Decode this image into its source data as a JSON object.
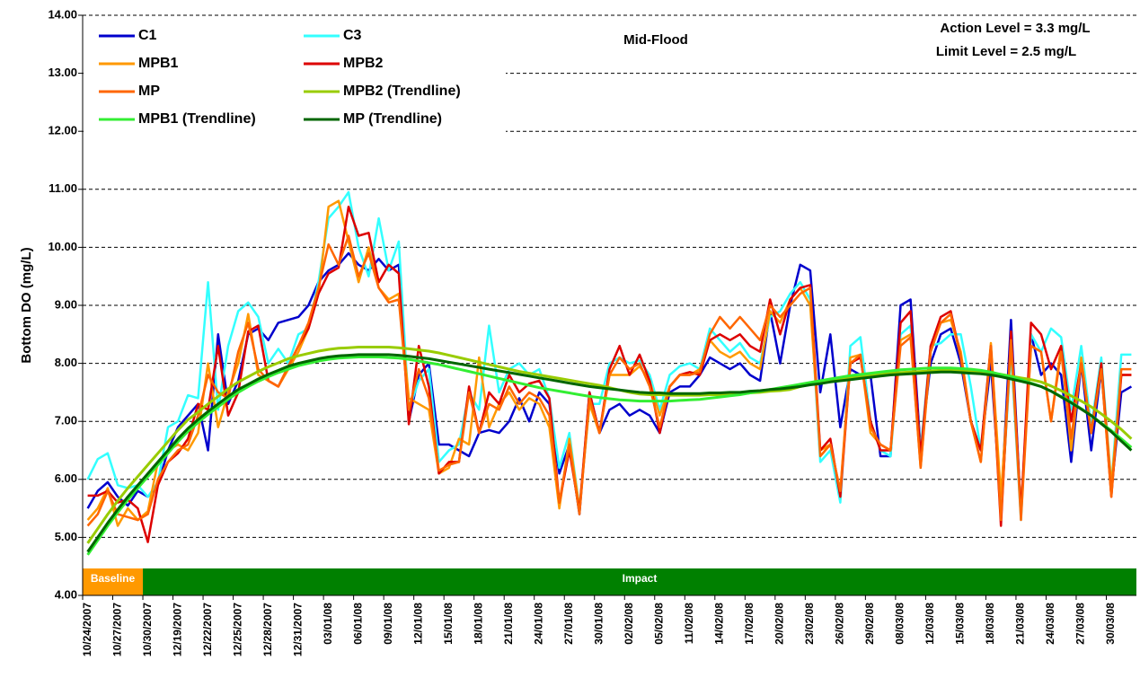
{
  "chart_data": {
    "type": "line",
    "y_label": "Bottom DO (mg/L)",
    "annotations": [
      "Mid-Flood",
      "Action Level = 3.3 mg/L",
      "Limit Level = 2.5 mg/L"
    ],
    "categories": [
      "10/24/2007",
      null,
      null,
      "10/27/2007",
      null,
      null,
      "10/30/2007",
      null,
      null,
      "12/19/2007",
      null,
      null,
      "12/22/2007",
      null,
      null,
      "12/25/2007",
      null,
      null,
      "12/28/2007",
      null,
      null,
      "12/31/2007",
      null,
      null,
      "03/01/08",
      null,
      null,
      "06/01/08",
      null,
      null,
      "09/01/08",
      null,
      null,
      "12/01/08",
      null,
      null,
      "15/01/08",
      null,
      null,
      "18/01/08",
      null,
      null,
      "21/01/08",
      null,
      null,
      "24/01/08",
      null,
      null,
      "27/01/08",
      null,
      null,
      "30/01/08",
      null,
      null,
      "02/02/08",
      null,
      null,
      "05/02/08",
      null,
      null,
      "11/02/08",
      null,
      null,
      "14/02/08",
      null,
      null,
      "17/02/08",
      null,
      null,
      "20/02/08",
      null,
      null,
      "23/02/08",
      null,
      null,
      "26/02/08",
      null,
      null,
      "29/02/08",
      null,
      null,
      "08/03/08",
      null,
      null,
      "12/03/08",
      null,
      null,
      "15/03/08",
      null,
      null,
      "18/03/08",
      null,
      null,
      "21/03/08",
      null,
      null,
      "24/03/08",
      null,
      null,
      "27/03/08",
      null,
      null,
      "30/03/08",
      null,
      null
    ],
    "periods": [
      {
        "label": "Baseline",
        "first_category": 0,
        "last_category": 5,
        "color": "#ff9900"
      },
      {
        "label": "Impact",
        "first_category": 6,
        "last_category": 104,
        "color": "#008000"
      }
    ],
    "ylim": [
      4,
      14
    ],
    "yticks": [
      {
        "value": 4,
        "label": "4.00"
      },
      {
        "value": 5,
        "label": "5.00"
      },
      {
        "value": 6,
        "label": "6.00"
      },
      {
        "value": 7,
        "label": "7.00"
      },
      {
        "value": 8,
        "label": "8.00"
      },
      {
        "value": 9,
        "label": "9.00"
      },
      {
        "value": 10,
        "label": "10.00"
      },
      {
        "value": 11,
        "label": "11.00"
      },
      {
        "value": 12,
        "label": "12.00"
      },
      {
        "value": 13,
        "label": "13.00"
      },
      {
        "value": 14,
        "label": "14.00"
      }
    ],
    "grid": true,
    "series": [
      {
        "name": "C1",
        "color": "#0000cc",
        "values": [
          5.5,
          5.8,
          5.95,
          5.7,
          5.55,
          5.8,
          5.7,
          5.9,
          6.5,
          6.9,
          7.1,
          7.3,
          6.5,
          8.5,
          7.3,
          7.7,
          8.5,
          8.6,
          8.4,
          8.7,
          8.75,
          8.8,
          9.0,
          9.4,
          9.6,
          9.7,
          9.9,
          9.7,
          9.6,
          9.8,
          9.6,
          9.7,
          7.0,
          7.8,
          8.0,
          6.6,
          6.6,
          6.5,
          6.4,
          6.8,
          6.85,
          6.8,
          7.0,
          7.4,
          7.0,
          7.5,
          7.3,
          6.1,
          6.6,
          5.4,
          7.5,
          6.8,
          7.2,
          7.3,
          7.1,
          7.2,
          7.1,
          6.8,
          7.5,
          7.6,
          7.6,
          7.8,
          8.1,
          8.0,
          7.9,
          8.0,
          7.8,
          7.7,
          8.9,
          8.0,
          9.0,
          9.7,
          9.6,
          7.5,
          8.5,
          6.9,
          7.9,
          7.8,
          7.8,
          6.4,
          6.4,
          9.0,
          9.1,
          6.5,
          8.0,
          8.5,
          8.6,
          8.0,
          7.0,
          6.5,
          8.0,
          5.5,
          8.75,
          5.4,
          8.5,
          7.8,
          8.0,
          7.8,
          6.3,
          8.0,
          6.5,
          7.9,
          5.8,
          7.5,
          7.6
        ]
      },
      {
        "name": "C3",
        "color": "#33ffff",
        "values": [
          6.0,
          6.35,
          6.45,
          5.9,
          5.85,
          5.9,
          5.7,
          5.95,
          6.9,
          7.0,
          7.45,
          7.4,
          9.4,
          7.2,
          8.3,
          8.9,
          9.05,
          8.8,
          8.0,
          8.25,
          8.0,
          8.5,
          8.6,
          9.4,
          10.5,
          10.7,
          10.95,
          10.0,
          9.5,
          10.5,
          9.6,
          10.1,
          7.2,
          7.7,
          7.9,
          6.3,
          6.5,
          6.6,
          7.5,
          7.2,
          8.65,
          7.5,
          7.9,
          8.0,
          7.8,
          7.9,
          7.4,
          6.2,
          6.8,
          5.5,
          7.3,
          7.3,
          8.0,
          8.1,
          8.0,
          8.05,
          7.8,
          7.2,
          7.8,
          7.95,
          8.0,
          7.9,
          8.6,
          8.4,
          8.2,
          8.35,
          8.1,
          8.0,
          8.8,
          8.9,
          9.2,
          9.4,
          9.1,
          6.3,
          6.5,
          5.6,
          8.3,
          8.45,
          7.0,
          6.5,
          6.4,
          8.5,
          8.65,
          6.5,
          8.3,
          8.35,
          8.5,
          8.5,
          7.6,
          6.5,
          8.3,
          5.4,
          8.2,
          5.3,
          8.5,
          8.2,
          8.6,
          8.45,
          7.2,
          8.3,
          6.9,
          8.1,
          5.9,
          8.15,
          8.15
        ]
      },
      {
        "name": "MPB1",
        "color": "#ff9900",
        "values": [
          5.3,
          5.5,
          5.85,
          5.2,
          5.5,
          5.3,
          5.45,
          6.3,
          6.5,
          6.6,
          6.5,
          6.8,
          8.0,
          6.9,
          7.5,
          8.0,
          8.85,
          7.8,
          7.7,
          7.6,
          7.9,
          8.2,
          8.6,
          9.2,
          10.7,
          10.8,
          10.1,
          9.4,
          10.0,
          9.3,
          9.1,
          9.2,
          7.4,
          7.3,
          7.2,
          6.1,
          6.2,
          6.7,
          6.6,
          8.1,
          6.9,
          7.3,
          7.5,
          7.2,
          7.4,
          7.3,
          6.9,
          5.5,
          6.7,
          5.5,
          7.3,
          6.8,
          7.8,
          7.8,
          7.8,
          7.95,
          7.7,
          7.1,
          7.6,
          7.8,
          7.8,
          7.9,
          8.4,
          8.2,
          8.1,
          8.2,
          8.0,
          7.9,
          8.9,
          8.7,
          9.1,
          9.3,
          9.0,
          6.5,
          6.6,
          5.8,
          8.1,
          8.15,
          6.8,
          6.6,
          6.5,
          8.4,
          8.5,
          6.2,
          8.3,
          8.7,
          8.75,
          8.2,
          7.0,
          6.3,
          8.35,
          5.7,
          8.3,
          5.5,
          8.3,
          8.2,
          7.0,
          8.3,
          6.5,
          8.1,
          6.8,
          8.0,
          5.9,
          7.8,
          7.8
        ]
      },
      {
        "name": "MPB2",
        "color": "#dd0000",
        "values": [
          5.72,
          5.72,
          5.8,
          5.6,
          5.65,
          5.5,
          4.92,
          5.9,
          6.3,
          6.45,
          6.7,
          7.3,
          7.2,
          8.3,
          7.1,
          7.5,
          8.55,
          8.65,
          7.7,
          7.6,
          7.95,
          8.3,
          8.6,
          9.2,
          9.55,
          9.65,
          10.7,
          10.2,
          10.25,
          9.4,
          9.7,
          9.55,
          6.95,
          8.3,
          7.6,
          6.1,
          6.3,
          6.3,
          7.6,
          6.8,
          7.5,
          7.3,
          7.8,
          7.5,
          7.65,
          7.7,
          7.4,
          5.6,
          6.5,
          5.45,
          7.5,
          6.8,
          7.9,
          8.3,
          7.8,
          8.15,
          7.7,
          6.8,
          7.6,
          7.8,
          7.85,
          7.8,
          8.4,
          8.5,
          8.4,
          8.5,
          8.3,
          8.2,
          9.1,
          8.5,
          9.1,
          9.3,
          9.35,
          6.5,
          6.7,
          5.7,
          8.0,
          8.1,
          7.0,
          6.5,
          6.5,
          8.7,
          8.9,
          6.4,
          8.3,
          8.8,
          8.9,
          8.1,
          7.0,
          6.5,
          8.3,
          5.2,
          8.55,
          5.4,
          8.7,
          8.5,
          7.9,
          8.3,
          7.0,
          8.0,
          6.8,
          8.0,
          5.7,
          7.8,
          7.8
        ]
      },
      {
        "name": "MP",
        "color": "#ff6600",
        "values": [
          5.2,
          5.4,
          5.8,
          5.4,
          5.35,
          5.3,
          5.4,
          6.0,
          6.3,
          6.5,
          6.6,
          7.1,
          7.8,
          7.5,
          7.4,
          8.2,
          8.7,
          7.9,
          7.7,
          7.6,
          7.95,
          8.3,
          8.7,
          9.3,
          10.05,
          9.7,
          10.2,
          9.5,
          9.9,
          9.3,
          9.05,
          9.1,
          7.2,
          7.9,
          7.4,
          6.15,
          6.25,
          6.3,
          7.5,
          6.8,
          7.3,
          7.2,
          7.6,
          7.3,
          7.5,
          7.4,
          7.1,
          5.6,
          6.6,
          5.4,
          7.4,
          6.8,
          7.8,
          8.1,
          7.9,
          8.0,
          7.6,
          6.9,
          7.6,
          7.8,
          7.8,
          7.85,
          8.5,
          8.8,
          8.6,
          8.8,
          8.6,
          8.4,
          9.0,
          8.8,
          9.0,
          9.2,
          9.3,
          6.4,
          6.6,
          5.8,
          8.0,
          8.15,
          6.9,
          6.6,
          6.5,
          8.3,
          8.45,
          6.2,
          8.2,
          8.7,
          8.85,
          8.1,
          7.0,
          6.3,
          8.3,
          5.3,
          8.4,
          5.3,
          8.3,
          8.2,
          7.0,
          8.2,
          6.7,
          8.0,
          6.8,
          7.9,
          5.7,
          7.9,
          7.9
        ]
      },
      {
        "name": "MPB2 (Trendline)",
        "color": "#99cc00",
        "trend": true,
        "values": [
          4.9,
          5.15,
          5.4,
          5.63,
          5.85,
          6.05,
          6.25,
          6.45,
          6.65,
          6.85,
          7.03,
          7.16,
          7.3,
          7.43,
          7.56,
          7.68,
          7.77,
          7.86,
          7.94,
          8.01,
          8.08,
          8.13,
          8.17,
          8.21,
          8.24,
          8.26,
          8.27,
          8.28,
          8.28,
          8.28,
          8.28,
          8.27,
          8.25,
          8.23,
          8.21,
          8.18,
          8.14,
          8.1,
          8.06,
          8.02,
          7.98,
          7.94,
          7.9,
          7.86,
          7.83,
          7.8,
          7.77,
          7.74,
          7.71,
          7.68,
          7.65,
          7.62,
          7.58,
          7.54,
          7.5,
          7.47,
          7.46,
          7.46,
          7.45,
          7.45,
          7.45,
          7.45,
          7.46,
          7.46,
          7.47,
          7.47,
          7.49,
          7.5,
          7.52,
          7.53,
          7.55,
          7.6,
          7.64,
          7.68,
          7.71,
          7.73,
          7.75,
          7.77,
          7.79,
          7.81,
          7.83,
          7.84,
          7.85,
          7.86,
          7.87,
          7.88,
          7.88,
          7.87,
          7.86,
          7.85,
          7.83,
          7.81,
          7.78,
          7.75,
          7.72,
          7.68,
          7.61,
          7.53,
          7.44,
          7.35,
          7.25,
          7.13,
          7.0,
          6.86,
          6.7
        ]
      },
      {
        "name": "MPB1 (Trendline)",
        "color": "#33ee33",
        "trend": true,
        "values": [
          4.7,
          4.95,
          5.2,
          5.43,
          5.65,
          5.85,
          6.05,
          6.25,
          6.45,
          6.65,
          6.83,
          6.98,
          7.12,
          7.25,
          7.38,
          7.5,
          7.6,
          7.69,
          7.77,
          7.84,
          7.9,
          7.96,
          8.0,
          8.04,
          8.07,
          8.09,
          8.1,
          8.11,
          8.11,
          8.11,
          8.1,
          8.09,
          8.07,
          8.04,
          8.01,
          7.98,
          7.94,
          7.9,
          7.86,
          7.82,
          7.78,
          7.74,
          7.7,
          7.66,
          7.62,
          7.58,
          7.55,
          7.52,
          7.49,
          7.46,
          7.43,
          7.41,
          7.39,
          7.37,
          7.36,
          7.35,
          7.35,
          7.35,
          7.35,
          7.36,
          7.37,
          7.38,
          7.4,
          7.42,
          7.44,
          7.46,
          7.49,
          7.52,
          7.55,
          7.58,
          7.61,
          7.64,
          7.67,
          7.7,
          7.73,
          7.76,
          7.79,
          7.81,
          7.83,
          7.85,
          7.87,
          7.89,
          7.9,
          7.91,
          7.92,
          7.92,
          7.92,
          7.91,
          7.9,
          7.88,
          7.85,
          7.81,
          7.77,
          7.72,
          7.66,
          7.6,
          7.52,
          7.43,
          7.33,
          7.22,
          7.1,
          6.97,
          6.84,
          6.7,
          6.55
        ]
      },
      {
        "name": "MP (Trendline)",
        "color": "#006600",
        "trend": true,
        "values": [
          4.75,
          5.0,
          5.25,
          5.48,
          5.7,
          5.9,
          6.1,
          6.3,
          6.5,
          6.7,
          6.88,
          7.03,
          7.17,
          7.3,
          7.43,
          7.55,
          7.64,
          7.73,
          7.81,
          7.88,
          7.95,
          8.0,
          8.04,
          8.08,
          8.11,
          8.13,
          8.14,
          8.15,
          8.15,
          8.15,
          8.15,
          8.14,
          8.12,
          8.1,
          8.08,
          8.05,
          8.02,
          7.99,
          7.96,
          7.93,
          7.9,
          7.87,
          7.84,
          7.81,
          7.78,
          7.75,
          7.72,
          7.69,
          7.66,
          7.63,
          7.6,
          7.58,
          7.56,
          7.54,
          7.52,
          7.5,
          7.49,
          7.49,
          7.48,
          7.48,
          7.48,
          7.48,
          7.49,
          7.49,
          7.5,
          7.5,
          7.52,
          7.53,
          7.55,
          7.56,
          7.58,
          7.6,
          7.63,
          7.65,
          7.68,
          7.7,
          7.72,
          7.74,
          7.76,
          7.78,
          7.8,
          7.81,
          7.82,
          7.83,
          7.84,
          7.85,
          7.85,
          7.84,
          7.83,
          7.82,
          7.8,
          7.77,
          7.73,
          7.69,
          7.65,
          7.6,
          7.52,
          7.42,
          7.32,
          7.21,
          7.1,
          6.96,
          6.82,
          6.66,
          6.5
        ]
      }
    ]
  }
}
